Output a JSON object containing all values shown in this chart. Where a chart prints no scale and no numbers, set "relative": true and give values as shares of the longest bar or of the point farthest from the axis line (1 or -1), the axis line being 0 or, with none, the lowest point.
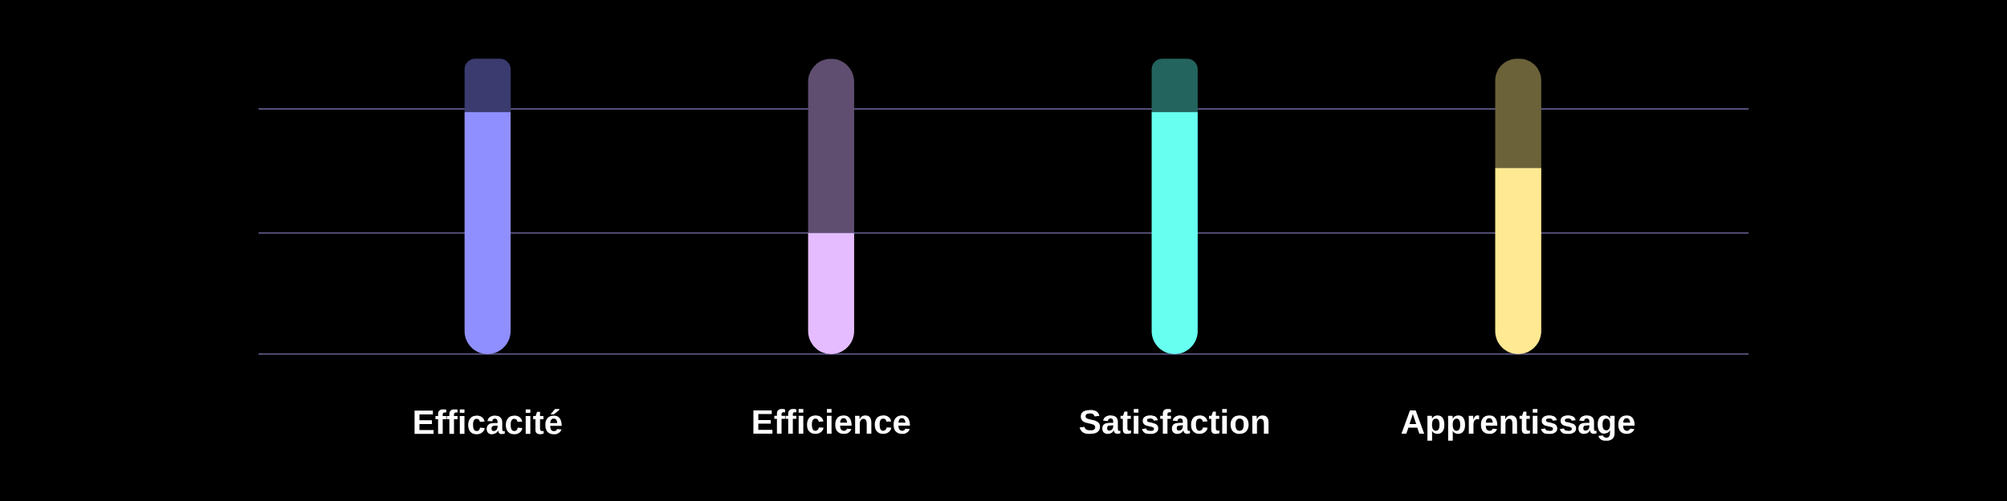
{
  "chart_data": {
    "type": "bar",
    "relative": true,
    "categories": [
      "Efficacité",
      "Efficience",
      "Satisfaction",
      "Apprentissage"
    ],
    "stacked": true,
    "series": [
      {
        "colors": [
          "#8f8fff",
          "#e4bcff",
          "#66fff0",
          "#ffe992"
        ],
        "values": [
          0.82,
          0.41,
          0.82,
          0.63
        ]
      },
      {
        "colors": [
          "#3b3b70",
          "#5f4e70",
          "#23645e",
          "#6b623a"
        ],
        "values": [
          0.18,
          0.59,
          0.18,
          0.37
        ]
      }
    ],
    "ref_lines": [
      {
        "axis": "y",
        "value": 0,
        "color": "#5f5b8a"
      },
      {
        "axis": "y",
        "value": 0.41,
        "color": "#5f5b8a"
      },
      {
        "axis": "y",
        "value": 0.83,
        "color": "#5f5b8a"
      }
    ]
  }
}
